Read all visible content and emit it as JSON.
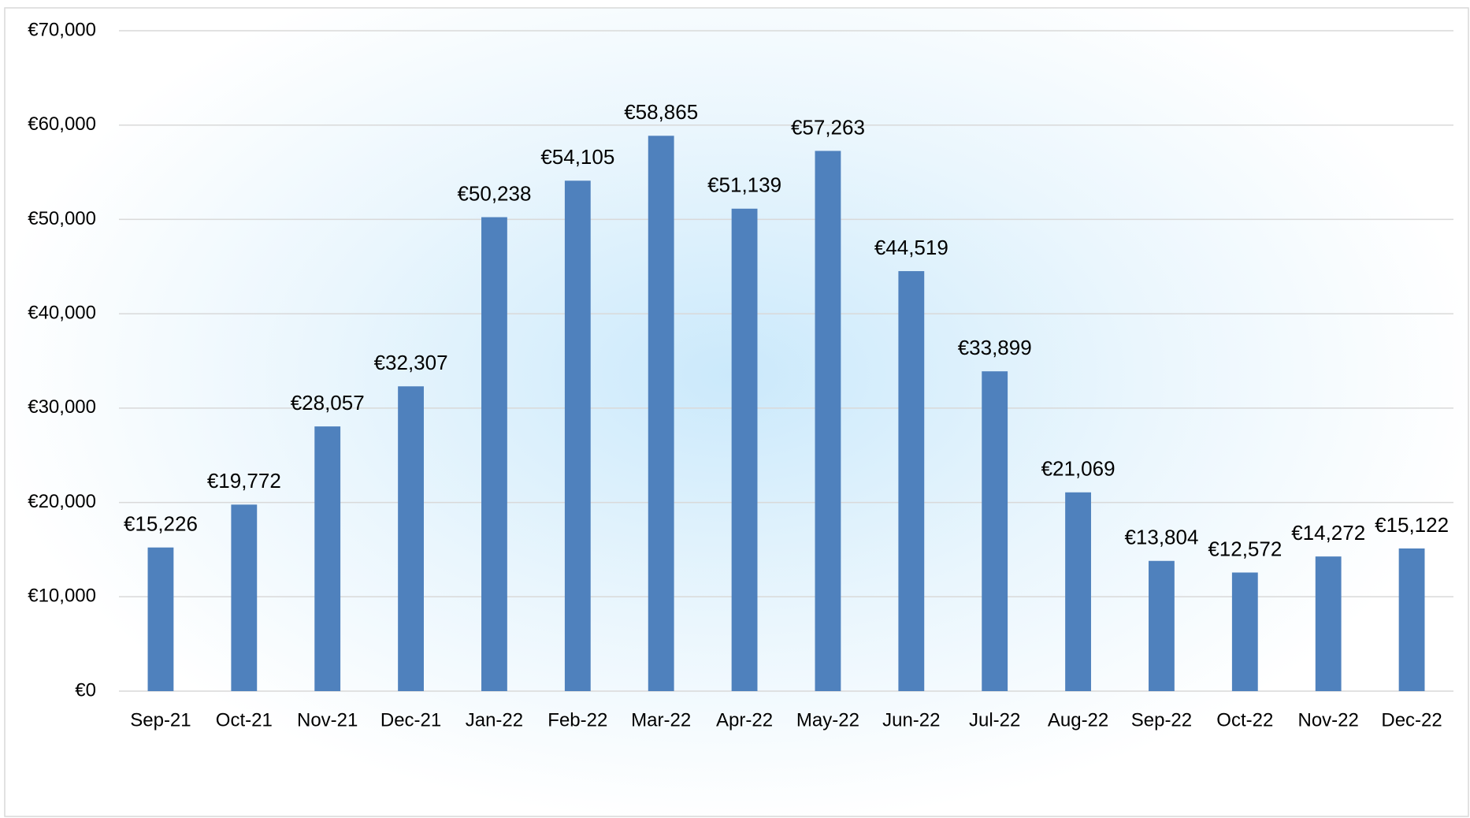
{
  "chart_data": {
    "type": "bar",
    "categories": [
      "Sep-21",
      "Oct-21",
      "Nov-21",
      "Dec-21",
      "Jan-22",
      "Feb-22",
      "Mar-22",
      "Apr-22",
      "May-22",
      "Jun-22",
      "Jul-22",
      "Aug-22",
      "Sep-22",
      "Oct-22",
      "Nov-22",
      "Dec-22"
    ],
    "values": [
      15226,
      19772,
      28057,
      32307,
      50238,
      54105,
      58865,
      51139,
      57263,
      44519,
      33899,
      21069,
      13804,
      12572,
      14272,
      15122
    ],
    "value_labels": [
      "€15,226",
      "€19,772",
      "€28,057",
      "€32,307",
      "€50,238",
      "€54,105",
      "€58,865",
      "€51,139",
      "€57,263",
      "€44,519",
      "€33,899",
      "€21,069",
      "€13,804",
      "€12,572",
      "€14,272",
      "€15,122"
    ],
    "color": "#4f81bd",
    "ylim": [
      0,
      70000
    ],
    "yticks": [
      {
        "value": 0,
        "label": "€0"
      },
      {
        "value": 10000,
        "label": "€10,000"
      },
      {
        "value": 20000,
        "label": "€20,000"
      },
      {
        "value": 30000,
        "label": "€30,000"
      },
      {
        "value": 40000,
        "label": "€40,000"
      },
      {
        "value": 50000,
        "label": "€50,000"
      },
      {
        "value": 60000,
        "label": "€60,000"
      },
      {
        "value": 70000,
        "label": "€70,000"
      }
    ],
    "grid": true
  }
}
